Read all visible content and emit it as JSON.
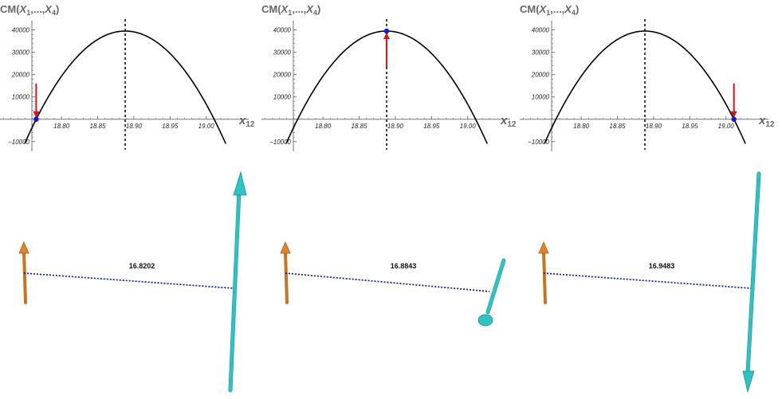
{
  "chart_data": [
    {
      "type": "line",
      "ylabel": "CM(X1,...,X4)",
      "xlabel": "x12",
      "xlim": [
        18.715,
        19.04
      ],
      "ylim": [
        -11500,
        42000
      ],
      "x_ticks": [
        "18.80",
        "18.85",
        "18.90",
        "18.95",
        "19.00"
      ],
      "y_ticks": [
        "−10000",
        "10000",
        "20000",
        "30000",
        "40000"
      ],
      "curve": {
        "vertex_x": 18.888,
        "peak_y": 39500,
        "root_left": 18.765,
        "root_right": 19.011
      },
      "dashed_x": 18.888,
      "marker": {
        "x": 18.765,
        "y": 0
      },
      "arrow": "down",
      "distance_label": "16.8202",
      "sticks": {
        "orange": "up",
        "cyan": "up"
      }
    },
    {
      "type": "line",
      "ylabel": "CM(X1,...,X4)",
      "xlabel": "x12",
      "xlim": [
        18.715,
        19.04
      ],
      "ylim": [
        -11500,
        42000
      ],
      "x_ticks": [
        "18.80",
        "18.85",
        "18.90",
        "18.95",
        "19.00"
      ],
      "y_ticks": [
        "−10000",
        "10000",
        "20000",
        "30000",
        "40000"
      ],
      "curve": {
        "vertex_x": 18.888,
        "peak_y": 39500,
        "root_left": 18.765,
        "root_right": 19.011
      },
      "dashed_x": 18.888,
      "marker": {
        "x": 18.888,
        "y": 39500
      },
      "arrow": "up",
      "distance_label": "16.8843",
      "sticks": {
        "orange": "up",
        "cyan": "down"
      }
    },
    {
      "type": "line",
      "ylabel": "CM(X1,...,X4)",
      "xlabel": "x12",
      "xlim": [
        18.715,
        19.04
      ],
      "ylim": [
        -11500,
        42000
      ],
      "x_ticks": [
        "18.80",
        "18.85",
        "18.90",
        "18.95",
        "19.00"
      ],
      "y_ticks": [
        "−10000",
        "10000",
        "20000",
        "30000",
        "40000"
      ],
      "curve": {
        "vertex_x": 18.888,
        "peak_y": 39500,
        "root_left": 18.765,
        "root_right": 19.011
      },
      "dashed_x": 18.888,
      "marker": {
        "x": 19.011,
        "y": 0
      },
      "arrow": "down",
      "distance_label": "16.9483",
      "sticks": {
        "orange": "up",
        "cyan": "down"
      }
    }
  ],
  "colors": {
    "curve": "#000000",
    "marker": "#1515dd",
    "arrow": "#dd1111",
    "dotted_link": "#1a1ac8",
    "orange_stick": "#c8741e",
    "cyan_stick": "#2fc4c4"
  }
}
